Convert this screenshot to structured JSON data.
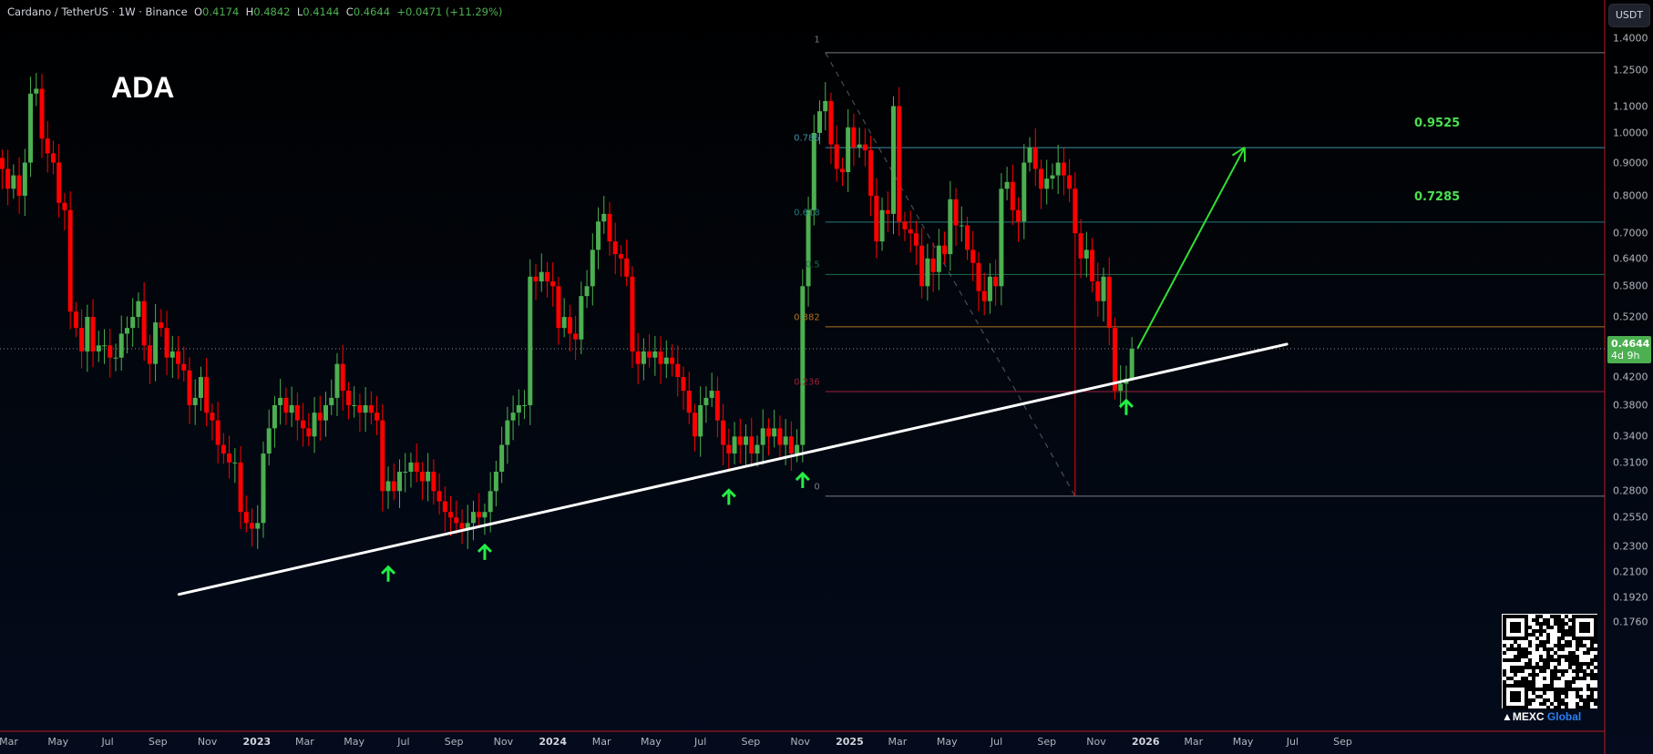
{
  "header": {
    "symbol": "Cardano / TetherUS · 1W · Binance",
    "o_label": "O",
    "open": "0.4174",
    "h_label": "H",
    "high": "0.4842",
    "l_label": "L",
    "low": "0.4144",
    "c_label": "C",
    "close": "0.4644",
    "change": "+0.0471 (+11.29%)"
  },
  "currency_button": "USDT",
  "annotation_title": "ADA",
  "current_price": {
    "value": "0.4644",
    "countdown": "4d 9h",
    "color": "#4caf50"
  },
  "watermark": {
    "brand": "MEXC",
    "brand_suffix": "Global"
  },
  "colors": {
    "up": "#4caf50",
    "down": "#ff0000",
    "trendline": "#ffffff",
    "arrow": "#33e033"
  },
  "chart_data": {
    "type": "candlestick",
    "timeframe": "1W",
    "y_scale": "log",
    "ylim": [
      0.176,
      1.4
    ],
    "first_week": "2022-02-21",
    "closes": [
      0.88,
      0.82,
      0.86,
      0.8,
      0.9,
      1.15,
      1.17,
      0.98,
      0.93,
      0.9,
      0.78,
      0.76,
      0.53,
      0.5,
      0.46,
      0.52,
      0.46,
      0.47,
      0.47,
      0.45,
      0.45,
      0.49,
      0.5,
      0.52,
      0.55,
      0.47,
      0.44,
      0.51,
      0.5,
      0.45,
      0.46,
      0.44,
      0.43,
      0.38,
      0.39,
      0.42,
      0.37,
      0.36,
      0.33,
      0.32,
      0.31,
      0.31,
      0.26,
      0.25,
      0.245,
      0.25,
      0.32,
      0.35,
      0.38,
      0.39,
      0.37,
      0.38,
      0.36,
      0.35,
      0.34,
      0.37,
      0.36,
      0.38,
      0.39,
      0.44,
      0.4,
      0.38,
      0.38,
      0.37,
      0.38,
      0.37,
      0.36,
      0.28,
      0.29,
      0.28,
      0.3,
      0.3,
      0.31,
      0.3,
      0.29,
      0.3,
      0.28,
      0.27,
      0.26,
      0.255,
      0.25,
      0.245,
      0.25,
      0.26,
      0.255,
      0.26,
      0.28,
      0.3,
      0.33,
      0.36,
      0.37,
      0.38,
      0.38,
      0.6,
      0.59,
      0.61,
      0.59,
      0.58,
      0.5,
      0.52,
      0.49,
      0.48,
      0.56,
      0.58,
      0.66,
      0.73,
      0.75,
      0.68,
      0.65,
      0.64,
      0.6,
      0.46,
      0.44,
      0.46,
      0.45,
      0.46,
      0.44,
      0.45,
      0.44,
      0.42,
      0.4,
      0.37,
      0.34,
      0.38,
      0.39,
      0.4,
      0.36,
      0.33,
      0.32,
      0.34,
      0.33,
      0.34,
      0.32,
      0.33,
      0.35,
      0.34,
      0.35,
      0.33,
      0.34,
      0.32,
      0.33,
      0.58,
      0.76,
      1.0,
      1.08,
      1.12,
      0.96,
      0.88,
      0.87,
      1.02,
      0.95,
      0.96,
      0.94,
      0.8,
      0.68,
      0.76,
      0.75,
      1.1,
      0.73,
      0.71,
      0.7,
      0.67,
      0.58,
      0.64,
      0.61,
      0.67,
      0.65,
      0.79,
      0.72,
      0.72,
      0.66,
      0.63,
      0.57,
      0.55,
      0.6,
      0.58,
      0.82,
      0.84,
      0.76,
      0.73,
      0.9,
      0.95,
      0.88,
      0.82,
      0.85,
      0.86,
      0.9,
      0.86,
      0.82,
      0.7,
      0.64,
      0.66,
      0.59,
      0.55,
      0.6,
      0.5,
      0.4,
      0.41,
      0.4174,
      0.4644
    ],
    "notable_low": {
      "week_index": 189,
      "low": 0.275
    },
    "last_candle": {
      "open": 0.4174,
      "high": 0.4842,
      "low": 0.4144,
      "close": 0.4644
    },
    "price_ticks": [
      "1.4000",
      "1.2500",
      "1.1000",
      "1.0000",
      "0.9000",
      "0.8000",
      "0.7000",
      "0.6400",
      "0.5800",
      "0.5200",
      "0.4200",
      "0.3800",
      "0.3400",
      "0.3100",
      "0.2800",
      "0.2550",
      "0.2300",
      "0.2100",
      "0.1920",
      "0.1760"
    ],
    "time_ticks": [
      {
        "label": "Mar",
        "date": "2022-03-01"
      },
      {
        "label": "May",
        "date": "2022-05-01"
      },
      {
        "label": "Jul",
        "date": "2022-07-01"
      },
      {
        "label": "Sep",
        "date": "2022-09-01"
      },
      {
        "label": "Nov",
        "date": "2022-11-01"
      },
      {
        "label": "2023",
        "date": "2023-01-01",
        "bold": true
      },
      {
        "label": "Mar",
        "date": "2023-03-01"
      },
      {
        "label": "May",
        "date": "2023-05-01"
      },
      {
        "label": "Jul",
        "date": "2023-07-01"
      },
      {
        "label": "Sep",
        "date": "2023-09-01"
      },
      {
        "label": "Nov",
        "date": "2023-11-01"
      },
      {
        "label": "2024",
        "date": "2024-01-01",
        "bold": true
      },
      {
        "label": "Mar",
        "date": "2024-03-01"
      },
      {
        "label": "May",
        "date": "2024-05-01"
      },
      {
        "label": "Jul",
        "date": "2024-07-01"
      },
      {
        "label": "Sep",
        "date": "2024-09-01"
      },
      {
        "label": "Nov",
        "date": "2024-11-01"
      },
      {
        "label": "2025",
        "date": "2025-01-01",
        "bold": true
      },
      {
        "label": "Mar",
        "date": "2025-03-01"
      },
      {
        "label": "May",
        "date": "2025-05-01"
      },
      {
        "label": "Jul",
        "date": "2025-07-01"
      },
      {
        "label": "Sep",
        "date": "2025-09-01"
      },
      {
        "label": "Nov",
        "date": "2025-11-01"
      },
      {
        "label": "2026",
        "date": "2026-01-01",
        "bold": true
      },
      {
        "label": "Mar",
        "date": "2026-03-01"
      },
      {
        "label": "May",
        "date": "2026-05-01"
      },
      {
        "label": "Jul",
        "date": "2026-07-01"
      },
      {
        "label": "Sep",
        "date": "2026-09-01"
      }
    ],
    "fibonacci": {
      "start_date": "2024-12-02",
      "high": 1.33,
      "low": 0.275,
      "levels": [
        {
          "label": "1",
          "ratio": 1,
          "color": "#787b86"
        },
        {
          "label": "0.786",
          "ratio": 0.786,
          "color": "#3f8fa8"
        },
        {
          "label": "0.618",
          "ratio": 0.618,
          "color": "#237a80"
        },
        {
          "label": "0.5",
          "ratio": 0.5,
          "color": "#1e6b4a"
        },
        {
          "label": "0.382",
          "ratio": 0.382,
          "color": "#b0701c"
        },
        {
          "label": "0.236",
          "ratio": 0.236,
          "color": "#9c1f3a"
        },
        {
          "label": "0",
          "ratio": 0,
          "color": "#787b86"
        }
      ]
    },
    "targets": [
      {
        "label": "0.9525",
        "price": 0.9525
      },
      {
        "label": "0.7285",
        "price": 0.7285
      }
    ],
    "support_trendline": {
      "start": {
        "date": "2022-09-27",
        "price": 0.194
      },
      "end": {
        "date": "2026-06-24",
        "price": 0.472
      }
    },
    "target_arrow": {
      "start": {
        "date": "2025-12-22",
        "price": 0.465
      },
      "end": {
        "date": "2026-05-03",
        "price": 0.95
      }
    },
    "support_touch_arrows": [
      "2023-06-12",
      "2023-10-09",
      "2024-08-05",
      "2024-11-04",
      "2025-12-08"
    ]
  }
}
